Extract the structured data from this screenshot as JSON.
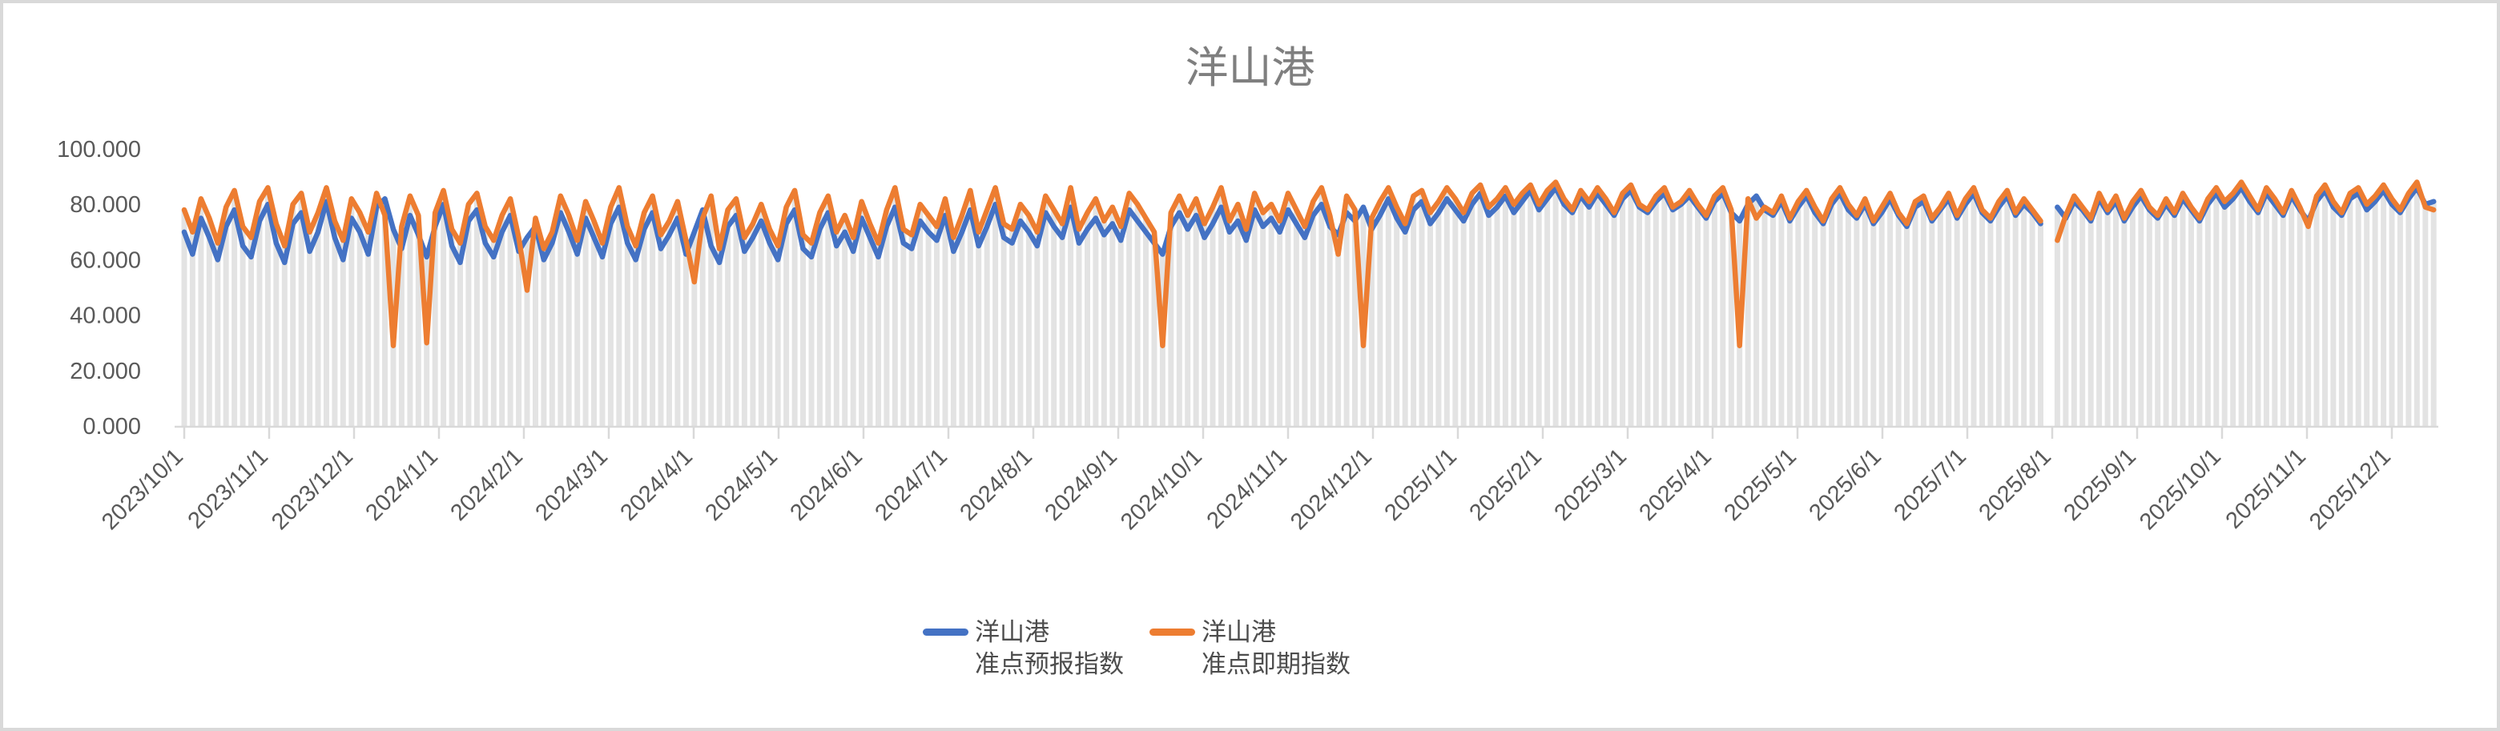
{
  "title": "洋山港",
  "legend": {
    "entries": [
      {
        "line1": "洋山港",
        "line2": "准点预报指数"
      },
      {
        "line1": "洋山港",
        "line2": "准点即期指数"
      }
    ]
  },
  "chart_data": {
    "type": "line",
    "title": "洋山港",
    "xlabel": "",
    "ylabel": "",
    "ylim": [
      0,
      100
    ],
    "y_tick_step": 20,
    "y_tick_labels": [
      "0.000",
      "20.000",
      "40.000",
      "60.000",
      "80.000",
      "100.000"
    ],
    "x_tick_labels": [
      "2023/10/1",
      "2023/11/1",
      "2023/12/1",
      "2024/1/1",
      "2024/2/1",
      "2024/3/1",
      "2024/4/1",
      "2024/5/1",
      "2024/6/1",
      "2024/7/1",
      "2024/8/1",
      "2024/9/1",
      "2024/10/1",
      "2024/11/1",
      "2024/12/1",
      "2025/1/1",
      "2025/2/1",
      "2025/3/1",
      "2025/4/1",
      "2025/5/1",
      "2025/6/1",
      "2025/7/1",
      "2025/8/1",
      "2025/9/1",
      "2025/10/1",
      "2025/11/1",
      "2025/12/1"
    ],
    "x_start_date": "2023/10/1",
    "point_spacing_days": 3,
    "grid": false,
    "legend_position": "bottom",
    "has_drop_lines": true,
    "missing_data_gap_index": 223,
    "colors": {
      "series_forecast": "#4472C4",
      "series_spot": "#ED7D31",
      "drop_lines": "#E3E3E3",
      "axis": "#D9D9D9",
      "axis_text": "#595959",
      "title_text": "#7F7F7F"
    },
    "series": [
      {
        "name": "洋山港准点预报指数",
        "color": "#4472C4",
        "values": [
          70,
          62,
          75,
          68,
          60,
          72,
          78,
          65,
          61,
          74,
          80,
          66,
          59,
          73,
          77,
          63,
          70,
          81,
          68,
          60,
          75,
          70,
          62,
          79,
          82,
          71,
          64,
          76,
          69,
          61,
          72,
          80,
          65,
          59,
          74,
          78,
          66,
          61,
          70,
          76,
          63,
          68,
          72,
          60,
          66,
          77,
          70,
          62,
          75,
          68,
          61,
          73,
          79,
          66,
          60,
          71,
          77,
          64,
          69,
          75,
          62,
          70,
          78,
          65,
          59,
          72,
          76,
          63,
          68,
          74,
          66,
          60,
          73,
          78,
          64,
          61,
          71,
          77,
          65,
          70,
          63,
          75,
          68,
          61,
          72,
          79,
          66,
          64,
          74,
          70,
          67,
          76,
          63,
          70,
          78,
          65,
          72,
          80,
          68,
          66,
          74,
          70,
          65,
          77,
          72,
          68,
          79,
          66,
          71,
          75,
          69,
          73,
          67,
          78,
          74,
          70,
          66,
          62,
          72,
          77,
          71,
          76,
          68,
          73,
          79,
          70,
          74,
          67,
          78,
          72,
          75,
          70,
          78,
          73,
          68,
          76,
          80,
          72,
          69,
          77,
          74,
          79,
          71,
          76,
          82,
          75,
          70,
          78,
          81,
          73,
          77,
          82,
          78,
          74,
          80,
          84,
          76,
          79,
          83,
          77,
          81,
          85,
          78,
          82,
          86,
          80,
          77,
          83,
          79,
          84,
          80,
          76,
          82,
          85,
          79,
          77,
          81,
          84,
          78,
          80,
          83,
          79,
          75,
          81,
          84,
          77,
          74,
          80,
          83,
          78,
          76,
          81,
          74,
          79,
          83,
          77,
          73,
          80,
          84,
          78,
          75,
          80,
          73,
          77,
          82,
          76,
          72,
          79,
          81,
          74,
          78,
          82,
          75,
          80,
          84,
          77,
          74,
          79,
          83,
          76,
          80,
          77,
          73,
          null,
          79,
          75,
          81,
          78,
          74,
          82,
          77,
          81,
          74,
          79,
          83,
          78,
          75,
          80,
          76,
          82,
          78,
          74,
          80,
          84,
          79,
          82,
          86,
          81,
          77,
          84,
          80,
          76,
          83,
          78,
          74,
          81,
          85,
          79,
          76,
          82,
          84,
          78,
          81,
          85,
          80,
          77,
          82,
          86,
          80,
          81
        ]
      },
      {
        "name": "洋山港准点即期指数",
        "color": "#ED7D31",
        "values": [
          78,
          70,
          82,
          75,
          66,
          79,
          85,
          72,
          68,
          81,
          86,
          73,
          65,
          80,
          84,
          70,
          77,
          86,
          74,
          67,
          82,
          77,
          70,
          84,
          76,
          29,
          72,
          83,
          76,
          30,
          77,
          85,
          71,
          66,
          80,
          84,
          72,
          67,
          76,
          82,
          68,
          49,
          75,
          64,
          70,
          83,
          76,
          67,
          81,
          74,
          66,
          79,
          86,
          72,
          65,
          77,
          83,
          69,
          74,
          81,
          67,
          52,
          75,
          83,
          64,
          78,
          82,
          68,
          73,
          80,
          71,
          65,
          79,
          85,
          69,
          66,
          77,
          83,
          70,
          76,
          68,
          81,
          73,
          66,
          78,
          86,
          71,
          69,
          80,
          76,
          72,
          82,
          68,
          76,
          85,
          70,
          78,
          86,
          73,
          71,
          80,
          76,
          70,
          83,
          78,
          73,
          86,
          71,
          77,
          82,
          74,
          79,
          72,
          84,
          80,
          75,
          70,
          29,
          77,
          83,
          76,
          82,
          73,
          79,
          86,
          74,
          80,
          71,
          84,
          77,
          80,
          74,
          84,
          78,
          72,
          81,
          86,
          76,
          62,
          83,
          78,
          29,
          75,
          81,
          86,
          79,
          73,
          83,
          85,
          77,
          81,
          86,
          82,
          77,
          84,
          87,
          79,
          82,
          86,
          80,
          84,
          87,
          80,
          85,
          88,
          82,
          78,
          85,
          81,
          86,
          82,
          77,
          84,
          87,
          80,
          78,
          83,
          86,
          79,
          81,
          85,
          80,
          76,
          83,
          86,
          78,
          29,
          82,
          75,
          79,
          77,
          83,
          75,
          81,
          85,
          79,
          74,
          82,
          86,
          80,
          76,
          82,
          74,
          79,
          84,
          77,
          73,
          81,
          83,
          75,
          79,
          84,
          76,
          82,
          86,
          78,
          75,
          81,
          85,
          77,
          82,
          78,
          74,
          null,
          67,
          76,
          83,
          79,
          75,
          84,
          78,
          83,
          75,
          81,
          85,
          79,
          76,
          82,
          77,
          84,
          79,
          75,
          82,
          86,
          81,
          84,
          88,
          83,
          78,
          86,
          82,
          77,
          85,
          79,
          72,
          83,
          87,
          81,
          77,
          84,
          86,
          80,
          83,
          87,
          82,
          78,
          84,
          88,
          79,
          78
        ]
      }
    ]
  }
}
